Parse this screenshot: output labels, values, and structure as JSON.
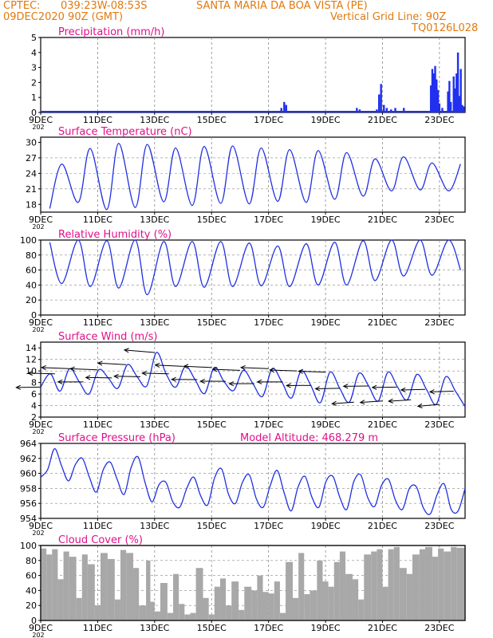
{
  "header": {
    "line1_left": "CPTEC:",
    "coords": "039:23W-08:53S",
    "station": "SANTA MARIA DA BOA VISTA (PE)",
    "date_run": "09DEC2020 90Z (GMT)",
    "grid_note": "Vertical Grid Line: 90Z",
    "code": "TQ0126L028"
  },
  "colors": {
    "header": "#e07a10",
    "title": "#e0108a",
    "series": "#2030e0",
    "bars": "#2030ee",
    "cloud": "#a8a8a8",
    "wind_arrow": "#000000",
    "grid": "#888888"
  },
  "x_axis": {
    "start_label": "9DEC",
    "tick_labels": [
      "9DEC",
      "11DEC",
      "13DEC",
      "15DEC",
      "17DEC",
      "19DEC",
      "21DEC",
      "23DEC"
    ],
    "tick_days": [
      0,
      2,
      4,
      6,
      8,
      10,
      12,
      14
    ],
    "range_days": [
      0,
      14.9
    ],
    "below_label": "202"
  },
  "chart_data": [
    {
      "type": "bar",
      "title": "Precipitation (mm/h)",
      "ylim": [
        0,
        5
      ],
      "yticks": [
        "0",
        "1",
        "2",
        "3",
        "4",
        "5"
      ],
      "events": [
        {
          "day": 8.45,
          "value": 0.3
        },
        {
          "day": 8.55,
          "value": 0.7
        },
        {
          "day": 8.62,
          "value": 0.5
        },
        {
          "day": 10.2,
          "value": 0.1
        },
        {
          "day": 11.1,
          "value": 0.3
        },
        {
          "day": 11.2,
          "value": 0.2
        },
        {
          "day": 11.55,
          "value": 0.1
        },
        {
          "day": 11.8,
          "value": 0.2
        },
        {
          "day": 11.88,
          "value": 1.2
        },
        {
          "day": 11.95,
          "value": 1.9
        },
        {
          "day": 12.05,
          "value": 0.5
        },
        {
          "day": 12.15,
          "value": 0.3
        },
        {
          "day": 12.3,
          "value": 0.2
        },
        {
          "day": 12.45,
          "value": 0.3
        },
        {
          "day": 12.6,
          "value": 0.1
        },
        {
          "day": 12.75,
          "value": 0.3
        },
        {
          "day": 13.7,
          "value": 1.8
        },
        {
          "day": 13.75,
          "value": 2.9
        },
        {
          "day": 13.8,
          "value": 2.6
        },
        {
          "day": 13.85,
          "value": 3.1
        },
        {
          "day": 13.9,
          "value": 2.2
        },
        {
          "day": 13.95,
          "value": 1.5
        },
        {
          "day": 14.0,
          "value": 0.6
        },
        {
          "day": 14.1,
          "value": 0.3
        },
        {
          "day": 14.3,
          "value": 1.4
        },
        {
          "day": 14.35,
          "value": 2.1
        },
        {
          "day": 14.4,
          "value": 0.7
        },
        {
          "day": 14.5,
          "value": 2.4
        },
        {
          "day": 14.55,
          "value": 1.6
        },
        {
          "day": 14.6,
          "value": 2.6
        },
        {
          "day": 14.65,
          "value": 4.0
        },
        {
          "day": 14.7,
          "value": 1.1
        },
        {
          "day": 14.75,
          "value": 2.9
        },
        {
          "day": 14.8,
          "value": 0.5
        },
        {
          "day": 14.85,
          "value": 0.4
        }
      ]
    },
    {
      "type": "line",
      "title": "Surface Temperature (nC)",
      "ylim": [
        16.5,
        31
      ],
      "yticks": [
        "18",
        "21",
        "24",
        "27",
        "30"
      ],
      "ytick_values": [
        18,
        21,
        24,
        27,
        30
      ],
      "daily": {
        "start_day": 0,
        "max_hour": 0.74,
        "min_hour": 0.32,
        "maxima": [
          25.8,
          28.8,
          29.8,
          29.6,
          28.9,
          29.2,
          29.3,
          28.9,
          28.6,
          28.4,
          28.0,
          26.8,
          27.2,
          26.0,
          25.8
        ],
        "minima": [
          17.2,
          18.4,
          17.0,
          17.4,
          18.5,
          17.8,
          18.2,
          18.1,
          18.6,
          18.4,
          19.0,
          19.6,
          20.6,
          20.8,
          20.6
        ]
      }
    },
    {
      "type": "line",
      "title": "Relative Humidity (%)",
      "ylim": [
        0,
        100
      ],
      "yticks": [
        "0",
        "20",
        "40",
        "60",
        "80",
        "100"
      ],
      "ytick_values": [
        0,
        20,
        40,
        60,
        80,
        100
      ],
      "daily": {
        "start_day": 0,
        "max_hour": 0.32,
        "min_hour": 0.74,
        "maxima": [
          97,
          100,
          99,
          100,
          98,
          98,
          98,
          96,
          92,
          95,
          97,
          99,
          100,
          100,
          100
        ],
        "minima": [
          42,
          38,
          36,
          27,
          38,
          37,
          38,
          39,
          38,
          40,
          40,
          46,
          52,
          53,
          60
        ]
      }
    },
    {
      "type": "line",
      "title": "Surface Wind (m/s)",
      "ylim": [
        2,
        15
      ],
      "yticks": [
        "2",
        "4",
        "6",
        "8",
        "10",
        "12",
        "14"
      ],
      "ytick_values": [
        2,
        4,
        6,
        8,
        10,
        12,
        14
      ],
      "series": [
        {
          "values": [
            7.2,
            9.5,
            6.5,
            10.4,
            8.1,
            6.0,
            10.2,
            8.8,
            7.0,
            11.1,
            9.0,
            7.4,
            13.2,
            9.5,
            7.2,
            10.8,
            8.5,
            6.1,
            10.6,
            8.2,
            6.6,
            10.1,
            7.8,
            5.6,
            10.4,
            8.1,
            5.3,
            10.0,
            7.5,
            4.5,
            9.8,
            7.0,
            4.6,
            9.6,
            7.4,
            4.8,
            9.8,
            7.2,
            5.0,
            9.4,
            6.8,
            4.2,
            9.0,
            6.5,
            3.8
          ]
        }
      ],
      "arrows": {
        "heading_deg": 200,
        "every_hours": 12
      }
    },
    {
      "type": "line",
      "title": "Surface Pressure (hPa)",
      "annotation": "Model Altitude: 468.279 m",
      "ylim": [
        954,
        964
      ],
      "yticks": [
        "954",
        "956",
        "958",
        "960",
        "962",
        "964"
      ],
      "ytick_values": [
        954,
        956,
        958,
        960,
        962,
        964
      ],
      "series": [
        {
          "values": [
            959.5,
            960.5,
            963.3,
            961.0,
            959.0,
            961.2,
            962.0,
            959.5,
            957.5,
            960.5,
            961.5,
            959.2,
            957.2,
            960.8,
            962.2,
            958.8,
            956.2,
            958.5,
            958.8,
            956.2,
            955.5,
            958.0,
            959.5,
            957.0,
            955.8,
            959.4,
            960.6,
            957.2,
            956.0,
            958.8,
            959.8,
            956.6,
            955.5,
            958.4,
            960.4,
            957.4,
            955.0,
            958.2,
            959.6,
            956.8,
            955.5,
            958.9,
            959.6,
            956.8,
            955.2,
            958.9,
            959.8,
            956.8,
            955.6,
            958.4,
            959.2,
            956.4,
            955.2,
            958.0,
            958.2,
            955.4,
            954.6,
            957.2,
            958.6,
            955.2,
            955.0,
            958.0
          ]
        }
      ]
    },
    {
      "type": "area",
      "title": "Cloud Cover (%)",
      "ylim": [
        0,
        100
      ],
      "yticks": [
        "0",
        "20",
        "40",
        "60",
        "80",
        "100"
      ],
      "ytick_values": [
        0,
        20,
        40,
        60,
        80,
        100
      ],
      "segments": [
        {
          "from": 0,
          "to": 0.2,
          "level": 96
        },
        {
          "from": 0.2,
          "to": 0.4,
          "level": 88
        },
        {
          "from": 0.4,
          "to": 0.6,
          "level": 95
        },
        {
          "from": 0.6,
          "to": 0.8,
          "level": 55
        },
        {
          "from": 0.8,
          "to": 1.0,
          "level": 92
        },
        {
          "from": 1.0,
          "to": 1.25,
          "level": 85
        },
        {
          "from": 1.25,
          "to": 1.45,
          "level": 30
        },
        {
          "from": 1.45,
          "to": 1.65,
          "level": 88
        },
        {
          "from": 1.65,
          "to": 1.9,
          "level": 75
        },
        {
          "from": 1.9,
          "to": 2.1,
          "level": 20
        },
        {
          "from": 2.1,
          "to": 2.35,
          "level": 90
        },
        {
          "from": 2.35,
          "to": 2.6,
          "level": 82
        },
        {
          "from": 2.6,
          "to": 2.8,
          "level": 28
        },
        {
          "from": 2.8,
          "to": 3.0,
          "level": 94
        },
        {
          "from": 3.0,
          "to": 3.25,
          "level": 90
        },
        {
          "from": 3.25,
          "to": 3.45,
          "level": 70
        },
        {
          "from": 3.45,
          "to": 3.7,
          "level": 20
        },
        {
          "from": 3.7,
          "to": 3.85,
          "level": 80
        },
        {
          "from": 3.85,
          "to": 4.0,
          "level": 25
        },
        {
          "from": 4.0,
          "to": 4.2,
          "level": 12
        },
        {
          "from": 4.2,
          "to": 4.45,
          "level": 50
        },
        {
          "from": 4.45,
          "to": 4.65,
          "level": 10
        },
        {
          "from": 4.65,
          "to": 4.85,
          "level": 62
        },
        {
          "from": 4.85,
          "to": 5.05,
          "level": 22
        },
        {
          "from": 5.05,
          "to": 5.25,
          "level": 8
        },
        {
          "from": 5.25,
          "to": 5.45,
          "level": 10
        },
        {
          "from": 5.45,
          "to": 5.7,
          "level": 70
        },
        {
          "from": 5.7,
          "to": 5.9,
          "level": 30
        },
        {
          "from": 5.9,
          "to": 6.1,
          "level": 8
        },
        {
          "from": 6.1,
          "to": 6.3,
          "level": 45
        },
        {
          "from": 6.3,
          "to": 6.5,
          "level": 56
        },
        {
          "from": 6.5,
          "to": 6.7,
          "level": 20
        },
        {
          "from": 6.7,
          "to": 6.95,
          "level": 52
        },
        {
          "from": 6.95,
          "to": 7.15,
          "level": 14
        },
        {
          "from": 7.15,
          "to": 7.4,
          "level": 45
        },
        {
          "from": 7.4,
          "to": 7.6,
          "level": 40
        },
        {
          "from": 7.6,
          "to": 7.8,
          "level": 60
        },
        {
          "from": 7.8,
          "to": 8.0,
          "level": 38
        },
        {
          "from": 8.0,
          "to": 8.2,
          "level": 36
        },
        {
          "from": 8.2,
          "to": 8.4,
          "level": 52
        },
        {
          "from": 8.4,
          "to": 8.6,
          "level": 10
        },
        {
          "from": 8.6,
          "to": 8.85,
          "level": 78
        },
        {
          "from": 8.85,
          "to": 9.05,
          "level": 30
        },
        {
          "from": 9.05,
          "to": 9.25,
          "level": 90
        },
        {
          "from": 9.25,
          "to": 9.45,
          "level": 35
        },
        {
          "from": 9.45,
          "to": 9.7,
          "level": 40
        },
        {
          "from": 9.7,
          "to": 9.9,
          "level": 80
        },
        {
          "from": 9.9,
          "to": 10.1,
          "level": 52
        },
        {
          "from": 10.1,
          "to": 10.3,
          "level": 45
        },
        {
          "from": 10.3,
          "to": 10.5,
          "level": 78
        },
        {
          "from": 10.5,
          "to": 10.7,
          "level": 92
        },
        {
          "from": 10.7,
          "to": 10.95,
          "level": 62
        },
        {
          "from": 10.95,
          "to": 11.15,
          "level": 55
        },
        {
          "from": 11.15,
          "to": 11.35,
          "level": 28
        },
        {
          "from": 11.35,
          "to": 11.6,
          "level": 88
        },
        {
          "from": 11.6,
          "to": 11.8,
          "level": 92
        },
        {
          "from": 11.8,
          "to": 12.0,
          "level": 95
        },
        {
          "from": 12.0,
          "to": 12.2,
          "level": 45
        },
        {
          "from": 12.2,
          "to": 12.4,
          "level": 95
        },
        {
          "from": 12.4,
          "to": 12.6,
          "level": 98
        },
        {
          "from": 12.6,
          "to": 12.85,
          "level": 70
        },
        {
          "from": 12.85,
          "to": 13.05,
          "level": 62
        },
        {
          "from": 13.05,
          "to": 13.3,
          "level": 88
        },
        {
          "from": 13.3,
          "to": 13.5,
          "level": 95
        },
        {
          "from": 13.5,
          "to": 13.75,
          "level": 98
        },
        {
          "from": 13.75,
          "to": 13.95,
          "level": 85
        },
        {
          "from": 13.95,
          "to": 14.15,
          "level": 96
        },
        {
          "from": 14.15,
          "to": 14.4,
          "level": 92
        },
        {
          "from": 14.4,
          "to": 14.6,
          "level": 98
        },
        {
          "from": 14.6,
          "to": 14.9,
          "level": 97
        }
      ]
    }
  ]
}
